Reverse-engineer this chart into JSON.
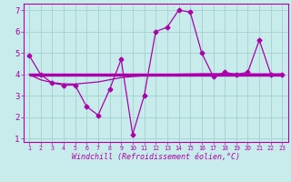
{
  "xlabel": "Windchill (Refroidissement éolien,°C)",
  "background_color": "#c8ecec",
  "grid_color": "#aad4d4",
  "line_color": "#aa00aa",
  "x_hours": [
    1,
    2,
    3,
    4,
    5,
    6,
    7,
    8,
    9,
    10,
    11,
    12,
    13,
    14,
    15,
    16,
    17,
    18,
    19,
    20,
    21,
    22,
    23
  ],
  "windchill_values": [
    4.9,
    4.0,
    3.6,
    3.5,
    3.5,
    2.5,
    2.1,
    3.3,
    4.7,
    1.2,
    3.0,
    6.0,
    6.2,
    7.0,
    6.9,
    5.0,
    3.9,
    4.1,
    4.0,
    4.1,
    5.6,
    4.0,
    4.0
  ],
  "smooth_line1_x": [
    1,
    23
  ],
  "smooth_line1_y": [
    4.0,
    4.0
  ],
  "smooth_line2": [
    4.0,
    3.75,
    3.62,
    3.56,
    3.55,
    3.6,
    3.65,
    3.75,
    3.85,
    3.9,
    3.94,
    3.97,
    3.99,
    4.01,
    4.02,
    4.03,
    4.03,
    4.03,
    4.02,
    4.02,
    4.02,
    4.02,
    4.02
  ],
  "ylim": [
    0.85,
    7.3
  ],
  "xlim": [
    0.5,
    23.5
  ],
  "yticks": [
    1,
    2,
    3,
    4,
    5,
    6,
    7
  ],
  "xticks": [
    1,
    2,
    3,
    4,
    5,
    6,
    7,
    8,
    9,
    10,
    11,
    12,
    13,
    14,
    15,
    16,
    17,
    18,
    19,
    20,
    21,
    22,
    23
  ]
}
